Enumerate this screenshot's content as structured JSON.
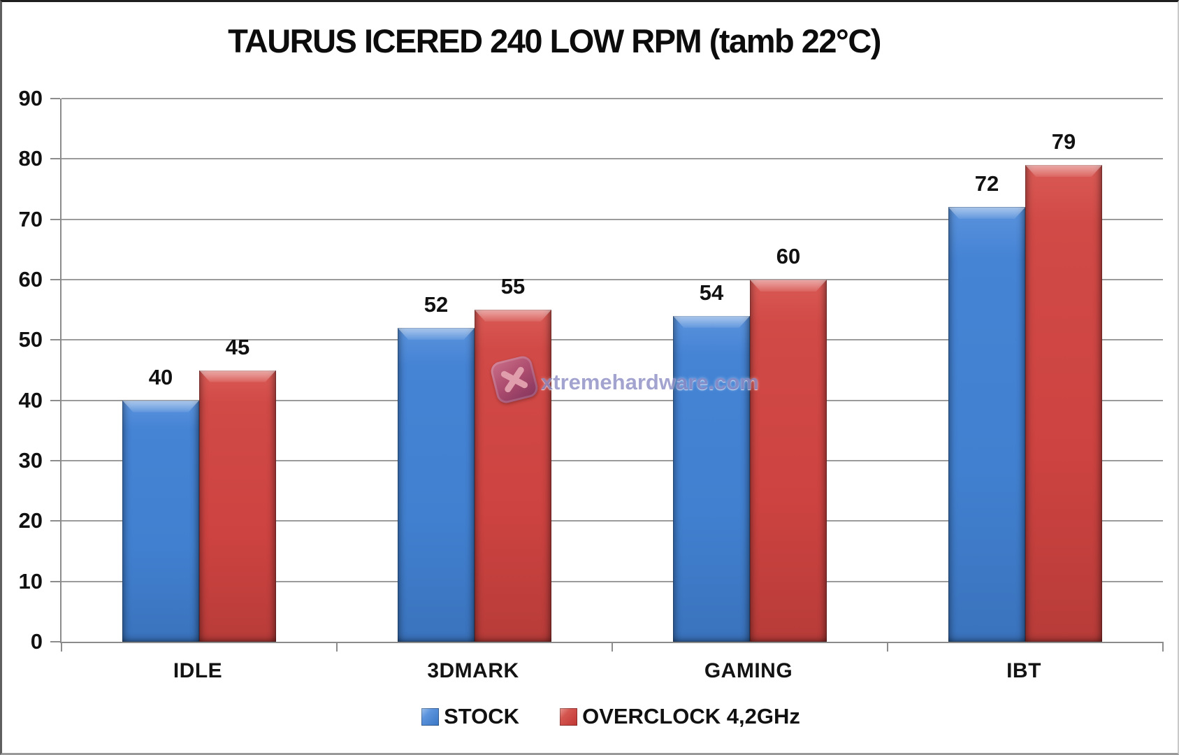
{
  "window": {
    "title": "TAURUS ICERED 240 LOW RPM (tamb 22°C)"
  },
  "watermark": {
    "text": "xtremehardware.com",
    "badge_icon": "x-logo",
    "text_color": "#8F8FC6",
    "badge_color_light": "#C9738F",
    "badge_color_dark": "#7E3360"
  },
  "chart_data": {
    "type": "bar",
    "title": "TAURUS ICERED 240 LOW RPM (tamb 22°C)",
    "categories": [
      "IDLE",
      "3DMARK",
      "GAMING",
      "IBT"
    ],
    "series": [
      {
        "name": "STOCK",
        "color": "#4180D0",
        "values": [
          40,
          52,
          54,
          72
        ]
      },
      {
        "name": "OVERCLOCK 4,2GHz",
        "color": "#CD4341",
        "values": [
          45,
          55,
          60,
          79
        ]
      }
    ],
    "xlabel": "",
    "ylabel": "",
    "ylim": [
      0,
      90
    ],
    "ytick_step": 10,
    "ytick_labels": [
      "0",
      "10",
      "20",
      "30",
      "40",
      "50",
      "60",
      "70",
      "80",
      "90"
    ],
    "grid": true,
    "value_labels": true,
    "legend_position": "bottom",
    "colors": {
      "gridline": "#9B9B9B",
      "axis": "#8C8C8C",
      "text": "#111111",
      "background": "#FFFFFF"
    }
  }
}
